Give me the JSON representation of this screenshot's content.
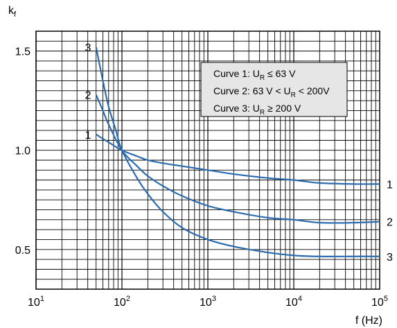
{
  "chart_data": {
    "type": "line",
    "ylabel": "kf",
    "xlabel": "f (Hz)",
    "x_scale": "log",
    "xlim": [
      10,
      100000
    ],
    "ylim": [
      0.3,
      1.6
    ],
    "grid": true,
    "x_ticks": [
      {
        "label": "10",
        "exp": "1"
      },
      {
        "label": "10",
        "exp": "2"
      },
      {
        "label": "10",
        "exp": "3"
      },
      {
        "label": "10",
        "exp": "4"
      },
      {
        "label": "10",
        "exp": "5"
      }
    ],
    "y_ticks": [
      "0.5",
      "1.0",
      "1.5"
    ],
    "legend": {
      "position": "top-right",
      "entries": [
        {
          "prefix": "Curve 1: U",
          "sub": "R",
          "suffix": " ≤ 63 V"
        },
        {
          "prefix": "Curve 2: 63 V < U",
          "sub": "R",
          "suffix": " < 200V"
        },
        {
          "prefix": "Curve 3: U",
          "sub": "R",
          "suffix": " ≥ 200 V"
        }
      ]
    },
    "series": [
      {
        "label_start": "1",
        "label_end": "1",
        "points": [
          [
            50,
            1.08
          ],
          [
            70,
            1.04
          ],
          [
            100,
            1.0
          ],
          [
            150,
            0.97
          ],
          [
            200,
            0.95
          ],
          [
            300,
            0.935
          ],
          [
            500,
            0.92
          ],
          [
            1000,
            0.9
          ],
          [
            2000,
            0.88
          ],
          [
            5000,
            0.86
          ],
          [
            10000,
            0.85
          ],
          [
            20000,
            0.835
          ],
          [
            50000,
            0.83
          ],
          [
            100000,
            0.83
          ]
        ]
      },
      {
        "label_start": "2",
        "label_end": "2",
        "points": [
          [
            50,
            1.28
          ],
          [
            60,
            1.2
          ],
          [
            70,
            1.13
          ],
          [
            100,
            1.0
          ],
          [
            150,
            0.92
          ],
          [
            200,
            0.87
          ],
          [
            300,
            0.82
          ],
          [
            500,
            0.77
          ],
          [
            1000,
            0.72
          ],
          [
            2000,
            0.69
          ],
          [
            5000,
            0.66
          ],
          [
            10000,
            0.65
          ],
          [
            20000,
            0.635
          ],
          [
            50000,
            0.635
          ],
          [
            100000,
            0.64
          ]
        ]
      },
      {
        "label_start": "3",
        "label_end": "3",
        "points": [
          [
            50,
            1.52
          ],
          [
            60,
            1.35
          ],
          [
            70,
            1.22
          ],
          [
            85,
            1.1
          ],
          [
            100,
            1.0
          ],
          [
            150,
            0.86
          ],
          [
            200,
            0.78
          ],
          [
            300,
            0.69
          ],
          [
            500,
            0.61
          ],
          [
            1000,
            0.55
          ],
          [
            2000,
            0.515
          ],
          [
            5000,
            0.485
          ],
          [
            10000,
            0.47
          ],
          [
            20000,
            0.465
          ],
          [
            50000,
            0.465
          ],
          [
            100000,
            0.465
          ]
        ]
      }
    ]
  }
}
